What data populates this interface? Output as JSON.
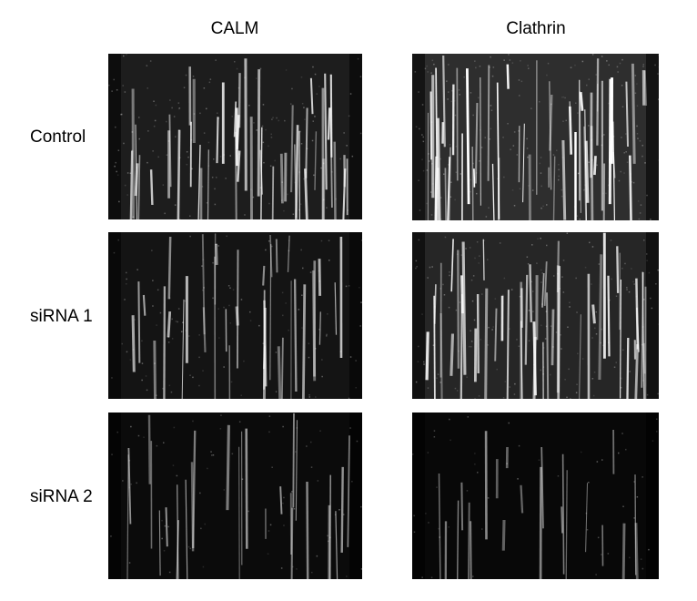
{
  "columns": [
    {
      "label": "CALM"
    },
    {
      "label": "Clathrin"
    }
  ],
  "rows": [
    {
      "label": "Control"
    },
    {
      "label": "siRNA 1"
    },
    {
      "label": "siRNA 2"
    }
  ],
  "panels": [
    {
      "row": "Control",
      "column": "CALM",
      "intensity": 0.75,
      "background": "#1d1d1d",
      "seed": 11
    },
    {
      "row": "Control",
      "column": "Clathrin",
      "intensity": 0.95,
      "background": "#2e2e2e",
      "seed": 23
    },
    {
      "row": "siRNA 1",
      "column": "CALM",
      "intensity": 0.55,
      "background": "#141414",
      "seed": 37
    },
    {
      "row": "siRNA 1",
      "column": "Clathrin",
      "intensity": 0.8,
      "background": "#262626",
      "seed": 41
    },
    {
      "row": "siRNA 2",
      "column": "CALM",
      "intensity": 0.35,
      "background": "#0b0b0b",
      "seed": 53
    },
    {
      "row": "siRNA 2",
      "column": "Clathrin",
      "intensity": 0.25,
      "background": "#080808",
      "seed": 67
    }
  ]
}
